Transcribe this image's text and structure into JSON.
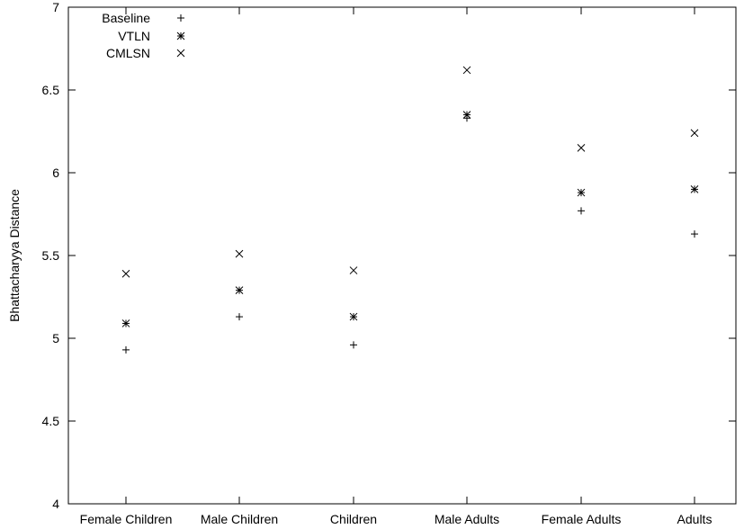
{
  "chart_data": {
    "type": "scatter",
    "title": "",
    "xlabel": "",
    "ylabel": "Bhattacharyya Distance",
    "categories": [
      "Female Children",
      "Male Children",
      "Children",
      "Male Adults",
      "Female Adults",
      "Adults"
    ],
    "ylim": [
      4,
      7
    ],
    "yticks": [
      "4",
      "4.5",
      "5",
      "5.5",
      "6",
      "6.5",
      "7"
    ],
    "grid": false,
    "legend_position": "top-left",
    "series": [
      {
        "name": "Baseline",
        "marker": "plus",
        "values": [
          4.93,
          5.13,
          4.96,
          6.33,
          5.77,
          5.63
        ]
      },
      {
        "name": "VTLN",
        "marker": "star",
        "values": [
          5.09,
          5.29,
          5.13,
          6.35,
          5.88,
          5.9
        ]
      },
      {
        "name": "CMLSN",
        "marker": "cross",
        "values": [
          5.39,
          5.51,
          5.41,
          6.62,
          6.15,
          6.24
        ]
      }
    ]
  }
}
